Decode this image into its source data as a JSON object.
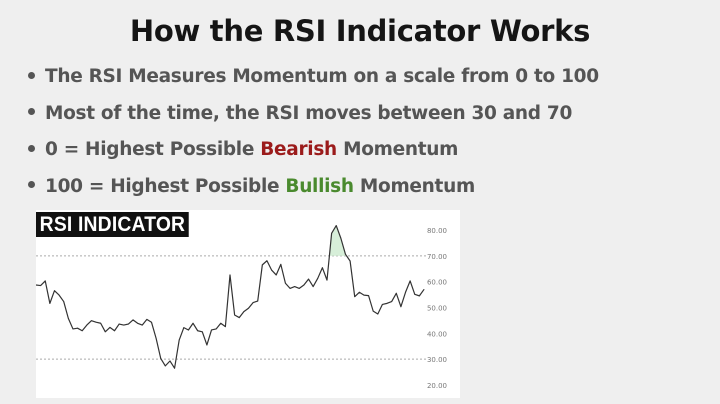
{
  "title": "How the RSI Indicator Works",
  "bullets": [
    {
      "text": "The RSI Measures Momentum on a scale from 0 to 100"
    },
    {
      "text": "Most of the time, the RSI moves between 30 and 70"
    },
    {
      "pre": "0 = Highest Possible ",
      "highlight": "Bearish",
      "post": " Momentum",
      "highlight_color": "#9b1b1b"
    },
    {
      "pre": "100 = Highest Possible ",
      "highlight": "Bullish",
      "post": " Momentum",
      "highlight_color": "#4a8a2e"
    }
  ],
  "chart_data": {
    "type": "line",
    "title": "RSI INDICATOR",
    "ylim": [
      20,
      80
    ],
    "yticks": [
      "80.00",
      "70.00",
      "60.00",
      "50.00",
      "40.00",
      "30.00",
      "20.00"
    ],
    "reference_lines": [
      70,
      30
    ],
    "overbought_fill_color": "#cdebd0",
    "line_color": "#333333",
    "values": [
      58.7,
      58.5,
      60.3,
      51.6,
      56.5,
      54.8,
      52.3,
      45.8,
      41.7,
      42,
      41,
      43.2,
      44.9,
      44.3,
      43.9,
      40.6,
      42.3,
      41,
      43.6,
      43.2,
      43.6,
      45.2,
      43.9,
      43.2,
      45.4,
      44.3,
      38.1,
      30.3,
      27.4,
      29.3,
      26.5,
      37.4,
      42.2,
      41.3,
      43.9,
      41,
      40.6,
      35.5,
      41.3,
      41.7,
      43.9,
      42.6,
      62.6,
      47.1,
      46.1,
      48.4,
      49.7,
      51.9,
      52.5,
      66.5,
      68.1,
      64.5,
      62.6,
      66.7,
      59.4,
      57.4,
      58.1,
      57.4,
      58.7,
      61,
      58.1,
      61.3,
      65.4,
      60.6,
      78.7,
      81.7,
      76.8,
      70.6,
      68,
      54.2,
      55.9,
      54.8,
      54.6,
      48.6,
      47.5,
      51.2,
      51.6,
      52.3,
      55.5,
      50.3,
      55.9,
      60.3,
      55.1,
      54.5,
      57
    ]
  }
}
